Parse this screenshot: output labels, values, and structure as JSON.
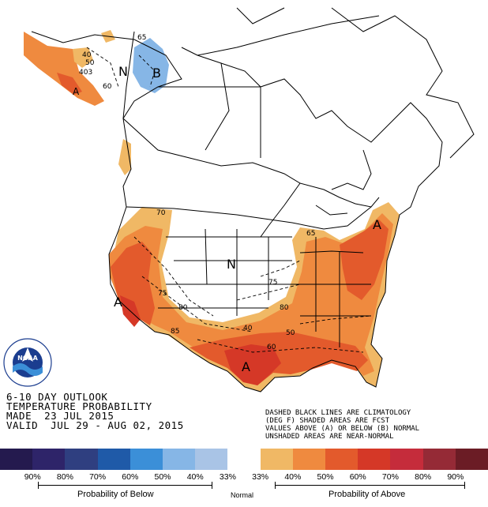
{
  "title": {
    "line1": "6-10 DAY OUTLOOK",
    "line2": "TEMPERATURE PROBABILITY",
    "line3": "MADE  23 JUL 2015",
    "line4": "VALID  JUL 29 - AUG 02, 2015"
  },
  "notes": {
    "line1": "DASHED BLACK LINES ARE CLIMATOLOGY",
    "line2": "(DEG F) SHADED AREAS ARE FCST",
    "line3": "VALUES ABOVE (A) OR BELOW (B) NORMAL",
    "line4": "UNSHADED AREAS ARE NEAR-NORMAL"
  },
  "map_labels": {
    "near_normal_alaska": "N",
    "below_alaska": "B",
    "near_normal_central": "N",
    "above_west": "A",
    "above_texas": "A",
    "above_northeast": "A",
    "above_ak_west": "A"
  },
  "climatology_values": [
    "40",
    "50",
    "60",
    "403",
    "70",
    "75",
    "80",
    "85",
    "65",
    "40",
    "50",
    "60",
    "75",
    "80",
    "65"
  ],
  "legend": {
    "scale_values": [
      "90%",
      "80%",
      "70%",
      "60%",
      "50%",
      "40%",
      "33%",
      "33%",
      "40%",
      "50%",
      "60%",
      "70%",
      "80%",
      "90%"
    ],
    "scale_colors": [
      "#241a4e",
      "#2e2469",
      "#2f3f80",
      "#1f5aa8",
      "#3b8fd8",
      "#86b6e6",
      "#a9c4e6",
      "#ffffff",
      "#f0b865",
      "#ef8a3f",
      "#e35a2c",
      "#d53827",
      "#c52c3b",
      "#952a36",
      "#6b1c25"
    ],
    "below_label": "Probability of Below",
    "normal_label": "Normal",
    "above_label": "Probability of Above"
  },
  "logo": {
    "text": "NOAA",
    "ring_text": "NATIONAL OCEANIC AND ATMOSPHERIC ADMINISTRATION · U.S. DEPARTMENT OF COMMERCE"
  }
}
